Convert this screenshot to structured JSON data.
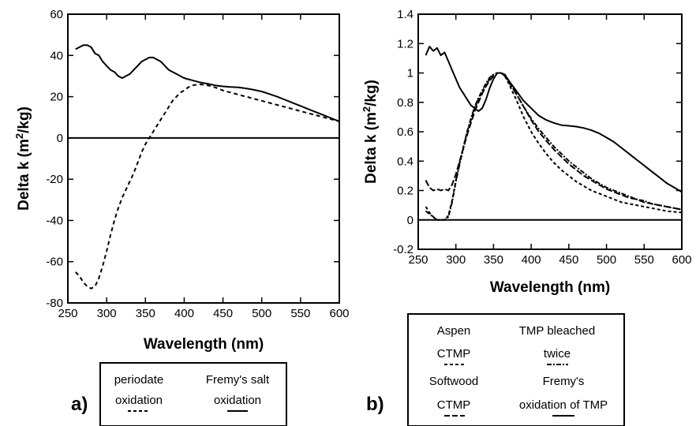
{
  "panel_labels": [
    "a)",
    "b)"
  ],
  "legend_a": {
    "items": [
      {
        "line1": "periodate",
        "line2": "oxidation",
        "style": "dashed"
      },
      {
        "line1": "Fremy's salt",
        "line2": "oxidation",
        "style": "solid"
      }
    ]
  },
  "legend_b": {
    "items": [
      {
        "line1": "Aspen",
        "line2": "CTMP",
        "style": "short-dash"
      },
      {
        "line1": "TMP bleached",
        "line2": "twice",
        "style": "dash-dot"
      },
      {
        "line1": "Softwood",
        "line2": "CTMP",
        "style": "long-dash"
      },
      {
        "line1": "Fremy's",
        "line2": "oxidation of TMP",
        "style": "solid"
      }
    ]
  },
  "chart_data": [
    {
      "type": "line",
      "xlabel": "Wavelength (nm)",
      "ylabel": "Delta k (m²/kg)",
      "ylabel_main": "Delta k (m",
      "ylabel_sup": "2",
      "ylabel_tail": "/kg)",
      "xlim": [
        250,
        600
      ],
      "ylim": [
        -80,
        60
      ],
      "xticks": [
        250,
        300,
        350,
        400,
        450,
        500,
        550,
        600
      ],
      "yticks": [
        -80,
        -60,
        -40,
        -20,
        0,
        20,
        40,
        60
      ],
      "grid": false,
      "series": [
        {
          "name": "Fremy's salt oxidation",
          "style": "solid",
          "x": [
            260,
            265,
            270,
            275,
            280,
            285,
            290,
            295,
            300,
            305,
            310,
            315,
            320,
            325,
            330,
            335,
            340,
            345,
            350,
            355,
            360,
            365,
            370,
            375,
            380,
            390,
            400,
            410,
            420,
            430,
            440,
            450,
            460,
            470,
            480,
            490,
            500,
            510,
            520,
            530,
            540,
            550,
            560,
            570,
            580,
            590,
            600
          ],
          "y": [
            43,
            44,
            45,
            45,
            44,
            41,
            40,
            37,
            35,
            33,
            32,
            30,
            29,
            30,
            31,
            33,
            35,
            37,
            38,
            39,
            39,
            38,
            37,
            35,
            33,
            31,
            29,
            28,
            27,
            26.3,
            25.5,
            25,
            24.7,
            24.5,
            24,
            23.3,
            22.5,
            21.3,
            20,
            18.5,
            17,
            15.5,
            14,
            12.5,
            11,
            9.5,
            8
          ]
        },
        {
          "name": "periodate oxidation",
          "style": "dashed",
          "x": [
            260,
            265,
            270,
            275,
            280,
            285,
            290,
            295,
            300,
            305,
            310,
            315,
            320,
            325,
            330,
            335,
            340,
            345,
            350,
            355,
            360,
            365,
            370,
            375,
            380,
            385,
            390,
            395,
            400,
            405,
            410,
            420,
            430,
            440,
            450,
            460,
            470,
            480,
            490,
            500,
            510,
            520,
            530,
            540,
            550,
            560,
            570,
            580,
            590,
            600
          ],
          "y": [
            -65,
            -67,
            -70,
            -72,
            -73,
            -72,
            -68,
            -62,
            -55,
            -47,
            -40,
            -34,
            -29,
            -25,
            -21,
            -17,
            -12,
            -7,
            -3,
            0,
            3,
            6,
            9,
            12,
            15,
            18,
            20,
            22,
            23,
            24.5,
            25.5,
            26,
            25.5,
            24.5,
            23,
            22,
            21,
            20,
            19,
            18,
            17,
            16,
            15,
            14,
            13,
            12,
            11,
            10,
            9,
            8
          ]
        }
      ]
    },
    {
      "type": "line",
      "xlabel": "Wavelength (nm)",
      "ylabel": "Delta k (m²/kg)",
      "ylabel_main": "Delta k (m",
      "ylabel_sup": "2",
      "ylabel_tail": "/kg)",
      "xlim": [
        250,
        600
      ],
      "ylim": [
        -0.2,
        1.4
      ],
      "xticks": [
        250,
        300,
        350,
        400,
        450,
        500,
        550,
        600
      ],
      "yticks": [
        -0.2,
        0,
        0.2,
        0.4,
        0.6,
        0.8,
        1,
        1.2,
        1.4
      ],
      "ytick_labels": [
        "-0.2",
        "0",
        "0.2",
        "0.4",
        "0.6",
        "0.8",
        "1",
        "1.2",
        "1.4"
      ],
      "grid": false,
      "series": [
        {
          "name": "Fremy's oxidation of TMP",
          "style": "solid",
          "x": [
            260,
            265,
            270,
            275,
            280,
            285,
            290,
            295,
            300,
            305,
            310,
            315,
            320,
            325,
            330,
            335,
            340,
            345,
            350,
            355,
            360,
            365,
            370,
            380,
            390,
            400,
            410,
            420,
            430,
            440,
            450,
            460,
            470,
            480,
            490,
            500,
            510,
            520,
            530,
            540,
            550,
            560,
            570,
            580,
            590,
            600
          ],
          "y": [
            1.12,
            1.18,
            1.15,
            1.17,
            1.12,
            1.14,
            1.08,
            1.02,
            0.96,
            0.9,
            0.86,
            0.82,
            0.78,
            0.76,
            0.74,
            0.76,
            0.82,
            0.9,
            0.96,
            1.0,
            1.0,
            0.99,
            0.95,
            0.88,
            0.81,
            0.76,
            0.71,
            0.68,
            0.66,
            0.645,
            0.64,
            0.635,
            0.625,
            0.61,
            0.59,
            0.56,
            0.53,
            0.49,
            0.45,
            0.41,
            0.37,
            0.33,
            0.29,
            0.25,
            0.22,
            0.19
          ]
        },
        {
          "name": "Aspen CTMP",
          "style": "short-dash",
          "x": [
            260,
            265,
            270,
            275,
            280,
            285,
            290,
            295,
            300,
            305,
            310,
            315,
            320,
            325,
            330,
            335,
            340,
            345,
            350,
            355,
            360,
            365,
            370,
            380,
            390,
            400,
            410,
            420,
            430,
            440,
            450,
            460,
            470,
            480,
            490,
            500,
            510,
            520,
            530,
            540,
            550,
            560,
            570,
            580,
            590,
            600
          ],
          "y": [
            0.09,
            0.05,
            0.02,
            0.0,
            0.0,
            0.0,
            0.03,
            0.13,
            0.27,
            0.39,
            0.5,
            0.6,
            0.68,
            0.76,
            0.82,
            0.87,
            0.92,
            0.96,
            0.99,
            1.0,
            1.0,
            0.98,
            0.93,
            0.82,
            0.7,
            0.6,
            0.52,
            0.45,
            0.39,
            0.34,
            0.3,
            0.26,
            0.23,
            0.2,
            0.18,
            0.16,
            0.14,
            0.12,
            0.11,
            0.1,
            0.09,
            0.08,
            0.07,
            0.06,
            0.055,
            0.05
          ]
        },
        {
          "name": "TMP bleached twice",
          "style": "dash-dot",
          "x": [
            260,
            265,
            270,
            275,
            280,
            285,
            290,
            295,
            300,
            305,
            310,
            315,
            320,
            325,
            330,
            335,
            340,
            345,
            350,
            355,
            360,
            365,
            370,
            380,
            390,
            400,
            410,
            420,
            430,
            440,
            450,
            460,
            470,
            480,
            490,
            500,
            510,
            520,
            530,
            540,
            550,
            560,
            570,
            580,
            590,
            600
          ],
          "y": [
            0.06,
            0.04,
            0.02,
            0.0,
            0.0,
            0.0,
            0.02,
            0.12,
            0.26,
            0.38,
            0.49,
            0.6,
            0.69,
            0.77,
            0.83,
            0.88,
            0.93,
            0.97,
            0.99,
            1.0,
            1.0,
            0.98,
            0.95,
            0.86,
            0.77,
            0.69,
            0.62,
            0.56,
            0.5,
            0.45,
            0.4,
            0.36,
            0.32,
            0.28,
            0.25,
            0.22,
            0.2,
            0.18,
            0.16,
            0.14,
            0.13,
            0.11,
            0.1,
            0.09,
            0.08,
            0.07
          ]
        },
        {
          "name": "Softwood CTMP",
          "style": "long-dash",
          "x": [
            260,
            265,
            270,
            275,
            280,
            285,
            290,
            295,
            300,
            305,
            310,
            315,
            320,
            325,
            330,
            335,
            340,
            345,
            350,
            355,
            360,
            365,
            370,
            380,
            390,
            400,
            410,
            420,
            430,
            440,
            450,
            460,
            470,
            480,
            490,
            500,
            510,
            520,
            530,
            540,
            550,
            560,
            570,
            580,
            590,
            600
          ],
          "y": [
            0.27,
            0.22,
            0.2,
            0.21,
            0.2,
            0.21,
            0.2,
            0.24,
            0.31,
            0.4,
            0.49,
            0.58,
            0.66,
            0.74,
            0.8,
            0.86,
            0.91,
            0.95,
            0.98,
            1.0,
            1.0,
            0.98,
            0.94,
            0.86,
            0.77,
            0.68,
            0.6,
            0.54,
            0.48,
            0.43,
            0.38,
            0.34,
            0.3,
            0.27,
            0.24,
            0.21,
            0.19,
            0.17,
            0.15,
            0.14,
            0.12,
            0.11,
            0.1,
            0.09,
            0.08,
            0.07
          ]
        }
      ]
    }
  ]
}
